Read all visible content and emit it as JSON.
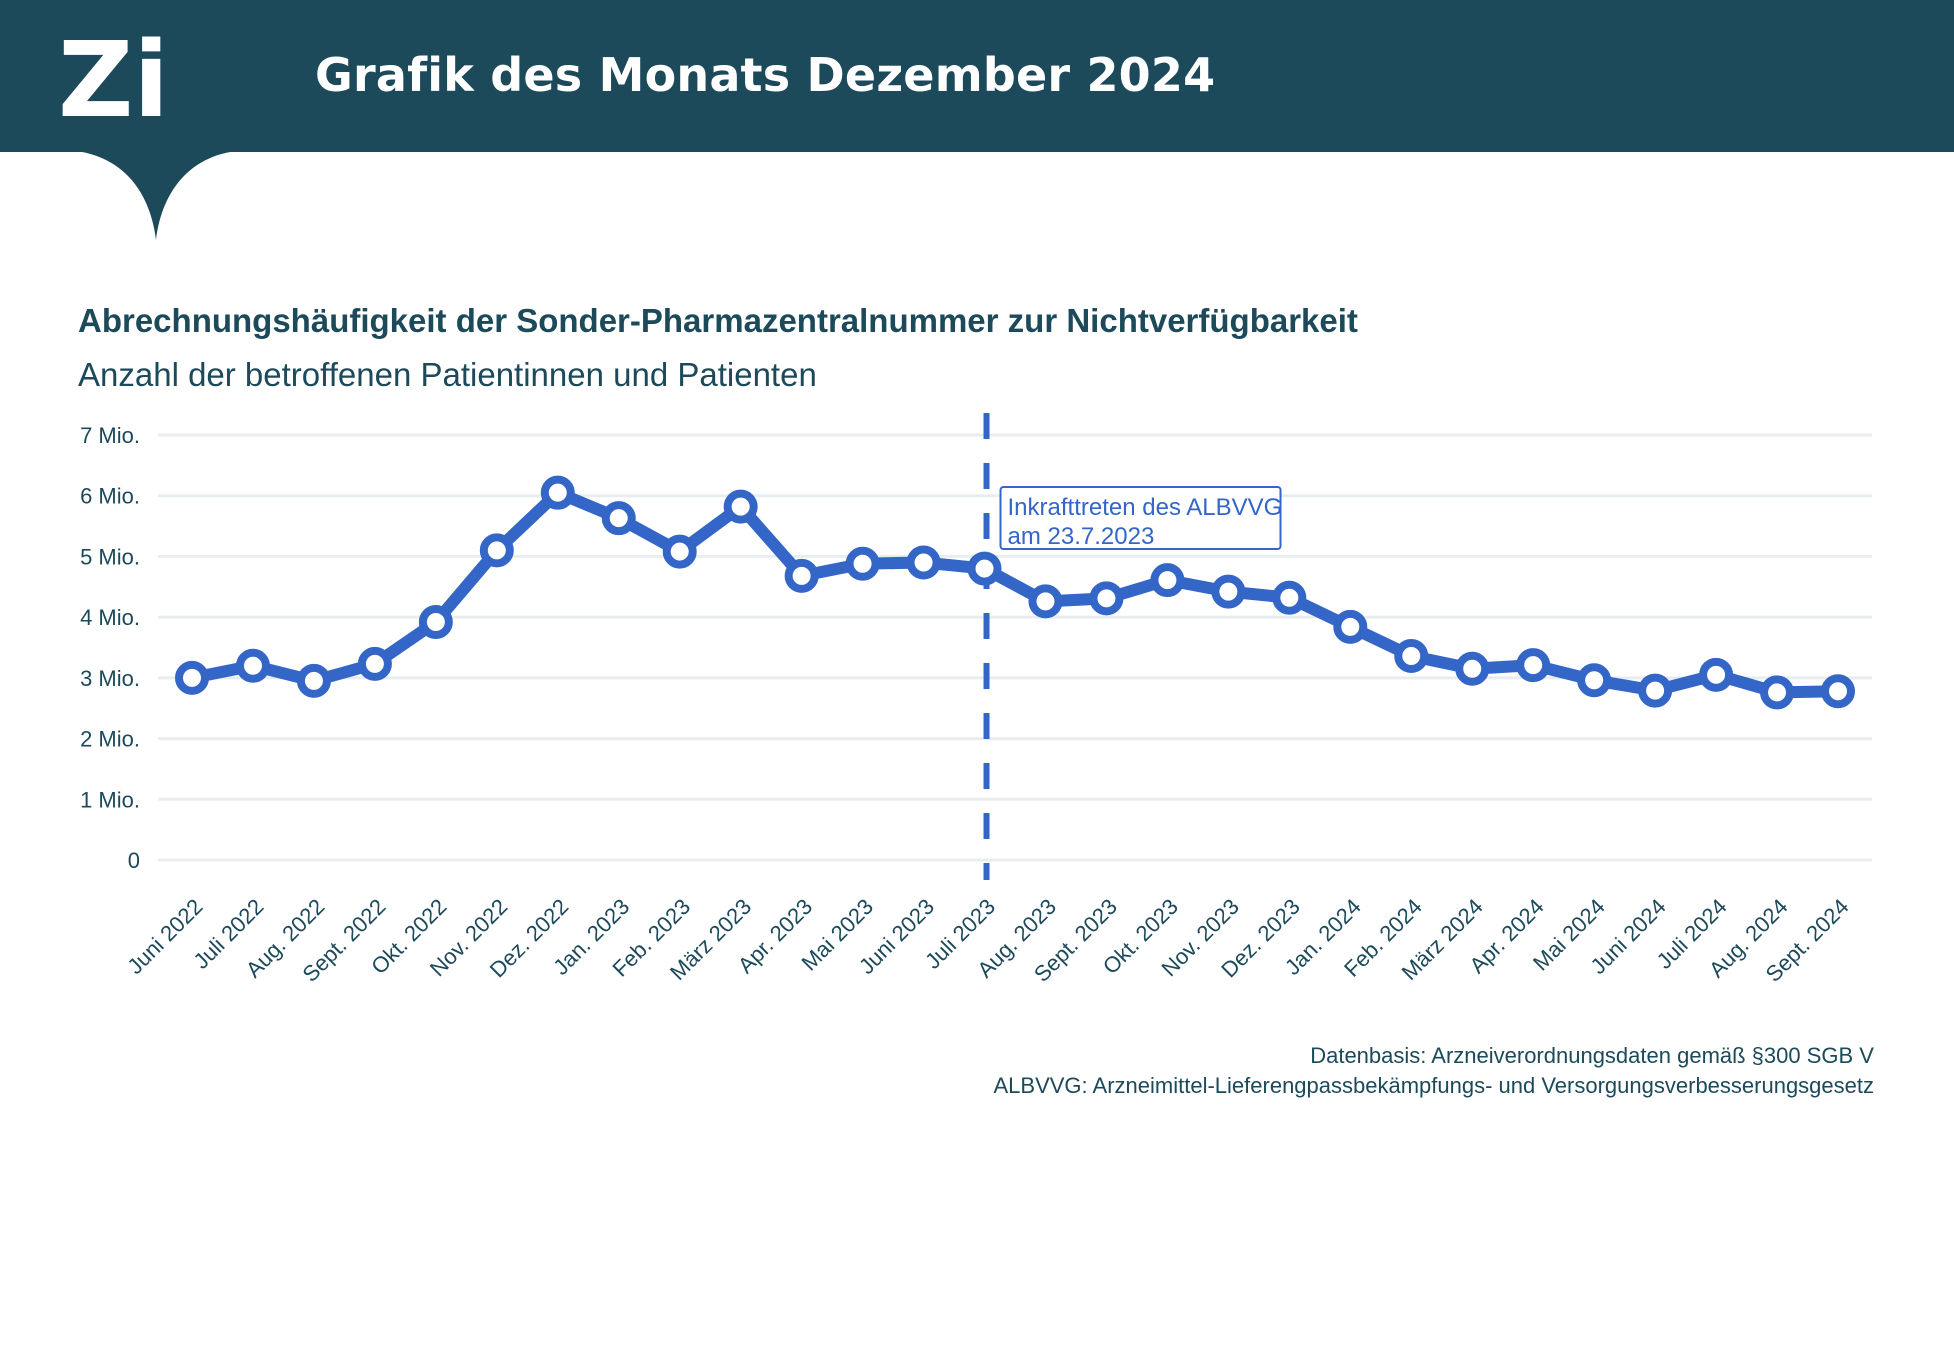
{
  "header": {
    "logo_text": "Zi",
    "title": "Grafik des Monats Dezember 2024"
  },
  "colors": {
    "header_bg": "#1c4a5a",
    "series": "#3366c7",
    "grid": "#e8eef0",
    "text": "#1c4a5a"
  },
  "chart_data": {
    "type": "line",
    "title": "Abrechnungshäufigkeit der Sonder-Pharmazentralnummer zur Nichtverfügbarkeit",
    "subtitle": "Anzahl der betroffenen Patientinnen und Patienten",
    "categories": [
      "Juni 2022",
      "Juli 2022",
      "Aug. 2022",
      "Sept. 2022",
      "Okt. 2022",
      "Nov. 2022",
      "Dez. 2022",
      "Jan. 2023",
      "Feb. 2023",
      "März 2023",
      "Apr. 2023",
      "Mai 2023",
      "Juni 2023",
      "Juli 2023",
      "Aug. 2023",
      "Sept. 2023",
      "Okt. 2023",
      "Nov. 2023",
      "Dez. 2023",
      "Jan. 2024",
      "Feb. 2024",
      "März 2024",
      "Apr. 2024",
      "Mai 2024",
      "Juni 2024",
      "Juli 2024",
      "Aug. 2024",
      "Sept. 2024"
    ],
    "series": [
      {
        "values": [
          3000000,
          3200000,
          2950000,
          3230000,
          3920000,
          5100000,
          6050000,
          5630000,
          5080000,
          5820000,
          4680000,
          4880000,
          4900000,
          4800000,
          4260000,
          4310000,
          4610000,
          4420000,
          4320000,
          3840000,
          3360000,
          3150000,
          3210000,
          2960000,
          2790000,
          3050000,
          2760000,
          2780000
        ]
      }
    ],
    "ylim": [
      0,
      7000000
    ],
    "yticks": [
      0,
      1000000,
      2000000,
      3000000,
      4000000,
      5000000,
      6000000,
      7000000
    ],
    "ytick_labels": [
      "0",
      "1 Mio.",
      "2 Mio.",
      "3 Mio.",
      "4 Mio.",
      "5 Mio.",
      "6 Mio.",
      "7 Mio."
    ],
    "grid": true,
    "legend": "none",
    "annotation": {
      "category": "Juli 2023",
      "style": "dashed-vertical-line",
      "line1": "Inkrafttreten des ALBVVG",
      "line2": "am 23.7.2023"
    }
  },
  "footnotes": {
    "source": "Datenbasis: Arzneiverordnungsdaten gemäß §300 SGB V",
    "abbreviation": "ALBVVG: Arzneimittel-Lieferengpassbekämpfungs- und Versorgungsverbesserungsgesetz"
  }
}
